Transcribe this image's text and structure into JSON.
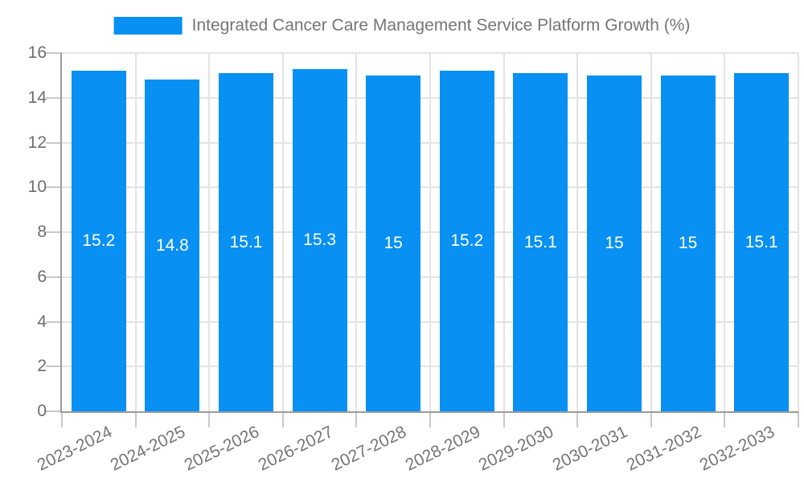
{
  "chart_data": {
    "type": "bar",
    "title": "Integrated Cancer Care Management Service Platform Growth (%)",
    "categories": [
      "2023-2024",
      "2024-2025",
      "2025-2026",
      "2026-2027",
      "2027-2028",
      "2028-2029",
      "2029-2030",
      "2030-2031",
      "2031-2032",
      "2032-2033"
    ],
    "values": [
      15.2,
      14.8,
      15.1,
      15.3,
      15,
      15.2,
      15.1,
      15,
      15,
      15.1
    ],
    "value_labels": [
      "15.2",
      "14.8",
      "15.1",
      "15.3",
      "15",
      "15.2",
      "15.1",
      "15",
      "15",
      "15.1"
    ],
    "xlabel": "",
    "ylabel": "",
    "ylim": [
      0,
      16
    ],
    "yticks": [
      0,
      2,
      4,
      6,
      8,
      10,
      12,
      14,
      16
    ],
    "grid": true,
    "legend_position": "top-center",
    "colors": {
      "bar": "#0890f2",
      "bar_label": "#ffffff",
      "grid_line": "#e3e3e3",
      "axis_line": "#9b9b9b",
      "tick_mark": "#c9c9c9",
      "tick_text": "#6e6e6e",
      "legend_text": "#757575",
      "background": "#ffffff"
    }
  }
}
